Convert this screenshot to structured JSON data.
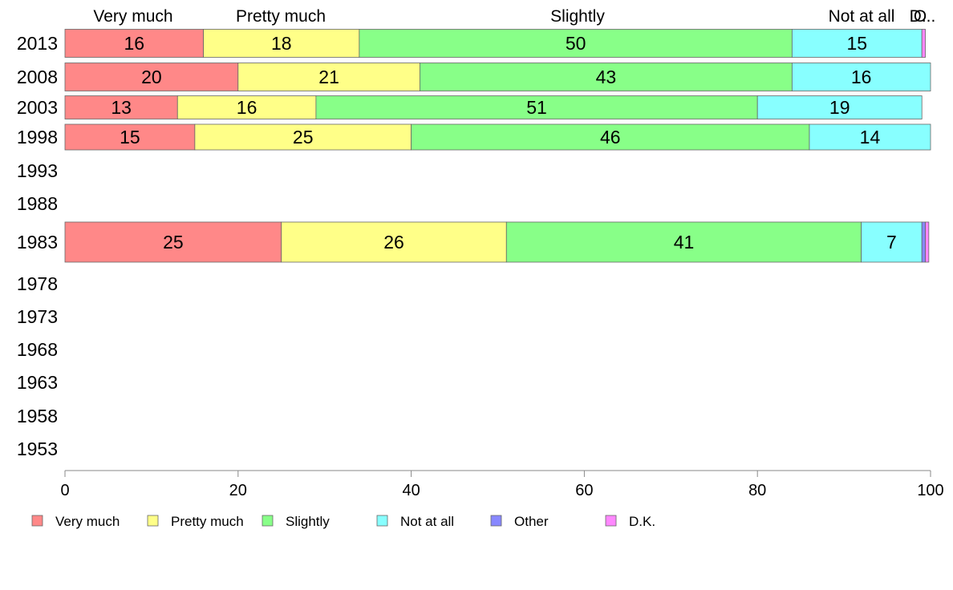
{
  "chart_data": {
    "type": "bar",
    "orientation": "horizontal",
    "stacked": true,
    "categories": [
      "2013",
      "2008",
      "2003",
      "1998",
      "1993",
      "1988",
      "1983",
      "1978",
      "1973",
      "1968",
      "1963",
      "1958",
      "1953"
    ],
    "series": [
      {
        "name": "Very much",
        "color": "#ff8888",
        "values": [
          16,
          20,
          13,
          15,
          null,
          null,
          25,
          null,
          null,
          null,
          null,
          null,
          null
        ],
        "labels": [
          "16",
          "20",
          "13",
          "15",
          "",
          "",
          "25",
          "",
          "",
          "",
          "",
          "",
          ""
        ]
      },
      {
        "name": "Pretty much",
        "color": "#ffff88",
        "values": [
          18,
          21,
          16,
          25,
          null,
          null,
          26,
          null,
          null,
          null,
          null,
          null,
          null
        ],
        "labels": [
          "18",
          "21",
          "16",
          "25",
          "",
          "",
          "26",
          "",
          "",
          "",
          "",
          "",
          ""
        ]
      },
      {
        "name": "Slightly",
        "color": "#88ff88",
        "values": [
          50,
          43,
          51,
          46,
          null,
          null,
          41,
          null,
          null,
          null,
          null,
          null,
          null
        ],
        "labels": [
          "50",
          "43",
          "51",
          "46",
          "",
          "",
          "41",
          "",
          "",
          "",
          "",
          "",
          ""
        ]
      },
      {
        "name": "Not at all",
        "color": "#88ffff",
        "values": [
          15,
          16,
          19,
          14,
          null,
          null,
          7,
          null,
          null,
          null,
          null,
          null,
          null
        ],
        "labels": [
          "15",
          "16",
          "19",
          "14",
          "",
          "",
          "7",
          "",
          "",
          "",
          "",
          "",
          ""
        ]
      },
      {
        "name": "Other",
        "color": "#8888ff",
        "values": [
          0,
          0,
          0,
          0,
          null,
          null,
          0.4,
          null,
          null,
          null,
          null,
          null,
          null
        ],
        "labels": [
          "",
          "",
          "",
          "",
          "",
          "",
          "",
          "",
          "",
          "",
          "",
          "",
          ""
        ]
      },
      {
        "name": "D.K.",
        "color": "#ff88ff",
        "values": [
          0.4,
          0,
          0,
          0,
          null,
          null,
          0.4,
          null,
          null,
          null,
          null,
          null,
          null
        ],
        "labels": [
          "",
          "",
          "",
          "",
          "",
          "",
          "",
          "",
          "",
          "",
          "",
          "",
          ""
        ]
      }
    ],
    "top_labels": [
      "Very much",
      "Pretty much",
      "Slightly",
      "Not at all",
      "O",
      "D..."
    ],
    "xlim": [
      0,
      100
    ],
    "xticks": [
      "0",
      "20",
      "40",
      "60",
      "80",
      "100"
    ],
    "title": "",
    "xlabel": "",
    "ylabel": "",
    "legend_position": "bottom",
    "grid": false
  }
}
